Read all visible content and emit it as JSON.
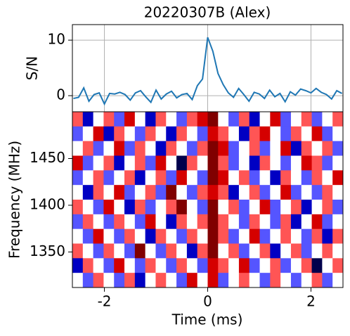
{
  "chart_data": [
    {
      "type": "line",
      "title": "20220307B (Alex)",
      "ylabel": "S/N",
      "color": "#1f77b4",
      "grid": true,
      "x": [
        -2.6,
        -2.5,
        -2.4,
        -2.3,
        -2.2,
        -2.1,
        -2.0,
        -1.9,
        -1.8,
        -1.7,
        -1.6,
        -1.5,
        -1.4,
        -1.3,
        -1.2,
        -1.1,
        -1.0,
        -0.9,
        -0.8,
        -0.7,
        -0.6,
        -0.5,
        -0.4,
        -0.3,
        -0.2,
        -0.1,
        0,
        0.1,
        0.2,
        0.3,
        0.4,
        0.5,
        0.6,
        0.7,
        0.8,
        0.9,
        1.0,
        1.1,
        1.2,
        1.3,
        1.4,
        1.5,
        1.6,
        1.7,
        1.8,
        1.9,
        2.0,
        2.1,
        2.2,
        2.3,
        2.4,
        2.5,
        2.6
      ],
      "values": [
        -0.5,
        -0.3,
        1.4,
        -1,
        0.2,
        0.5,
        -1.5,
        0.4,
        0.3,
        0.6,
        0.2,
        -0.8,
        0.5,
        0.9,
        -0.2,
        -1.2,
        1,
        -0.6,
        0.3,
        0.8,
        -0.4,
        0.2,
        0.4,
        -0.7,
        1.8,
        3,
        10.5,
        8,
        4,
        2,
        0.5,
        -0.3,
        1.3,
        0.2,
        -1,
        0.6,
        0.3,
        -0.5,
        1,
        -0.2,
        0.4,
        -1.1,
        0.7,
        0.1,
        1.2,
        0.9,
        0.5,
        1.3,
        0.6,
        0.2,
        -0.6,
        0.9,
        0.4
      ],
      "xlim": [
        -2.62,
        2.62
      ],
      "xticks": [
        -2,
        0,
        2
      ],
      "ylim": [
        -2.9,
        12.8
      ],
      "yticks": [
        0,
        10
      ]
    },
    {
      "type": "heatmap",
      "xlabel": "Time (ms)",
      "ylabel": "Frequency (MHz)",
      "xlim": [
        -2.62,
        2.62
      ],
      "xticks": [
        -2,
        0,
        2
      ],
      "ylim": [
        1312,
        1500
      ],
      "yticks": [
        1350,
        1400,
        1450
      ],
      "zlim": [
        -3,
        3
      ],
      "colormap": [
        "#00004c",
        "#0000ff",
        "#ffffff",
        "#ff0000",
        "#800000"
      ],
      "z": [
        [
          1,
          -2,
          0,
          1,
          -1,
          2,
          0,
          -2,
          1,
          0,
          -1,
          1,
          2,
          3,
          0,
          -1,
          1,
          -2,
          0,
          2,
          -1,
          0,
          1,
          -1,
          0,
          1
        ],
        [
          -1,
          0,
          2,
          -2,
          1,
          0,
          -1,
          1,
          0,
          -2,
          1,
          0,
          -1,
          2,
          1,
          0,
          -2,
          1,
          2,
          0,
          -1,
          1,
          0,
          2,
          -1,
          0
        ],
        [
          0,
          1,
          -1,
          0,
          2,
          -1,
          1,
          0,
          -2,
          1,
          0,
          -1,
          1,
          3,
          2,
          -1,
          0,
          1,
          -1,
          0,
          2,
          -2,
          1,
          0,
          1,
          -1
        ],
        [
          2,
          -1,
          0,
          1,
          -2,
          0,
          1,
          -1,
          2,
          0,
          -3,
          1,
          0,
          3,
          1,
          -1,
          0,
          -2,
          1,
          0,
          -1,
          0,
          2,
          1,
          -1,
          0
        ],
        [
          -1,
          0,
          1,
          -1,
          0,
          1,
          -2,
          0,
          1,
          -1,
          2,
          0,
          -1,
          3,
          2,
          0,
          1,
          -1,
          0,
          -2,
          1,
          0,
          -1,
          1,
          0,
          2
        ],
        [
          0,
          -2,
          1,
          0,
          2,
          -1,
          0,
          1,
          -1,
          3,
          0,
          -1,
          1,
          2,
          1,
          -2,
          0,
          1,
          -1,
          0,
          2,
          -1,
          0,
          -1,
          1,
          0
        ],
        [
          1,
          0,
          -1,
          2,
          0,
          -2,
          1,
          -1,
          0,
          1,
          3,
          0,
          -1,
          3,
          0,
          1,
          -1,
          0,
          2,
          -1,
          0,
          1,
          -2,
          0,
          1,
          -1
        ],
        [
          -1,
          1,
          0,
          -1,
          1,
          0,
          -1,
          2,
          0,
          -2,
          1,
          0,
          1,
          3,
          1,
          0,
          -1,
          1,
          0,
          -1,
          1,
          -2,
          0,
          2,
          -1,
          0
        ],
        [
          0,
          -1,
          2,
          0,
          -1,
          1,
          0,
          -2,
          1,
          0,
          -1,
          1,
          0,
          3,
          1,
          -1,
          0,
          2,
          -1,
          0,
          1,
          0,
          -1,
          1,
          -2,
          1
        ],
        [
          1,
          0,
          -1,
          1,
          0,
          -1,
          3,
          0,
          -1,
          1,
          0,
          -2,
          1,
          3,
          0,
          1,
          -1,
          0,
          1,
          -2,
          0,
          1,
          -1,
          0,
          1,
          0
        ],
        [
          -2,
          1,
          0,
          -1,
          2,
          0,
          -1,
          1,
          0,
          -1,
          1,
          0,
          -1,
          2,
          1,
          0,
          2,
          -1,
          0,
          1,
          -1,
          0,
          1,
          -3,
          0,
          1
        ],
        [
          0,
          -1,
          1,
          0,
          -1,
          1,
          -2,
          0,
          1,
          0,
          -1,
          2,
          0,
          2,
          -1,
          0,
          1,
          0,
          -1,
          1,
          0,
          -1,
          0,
          1,
          -1,
          0
        ]
      ]
    }
  ]
}
